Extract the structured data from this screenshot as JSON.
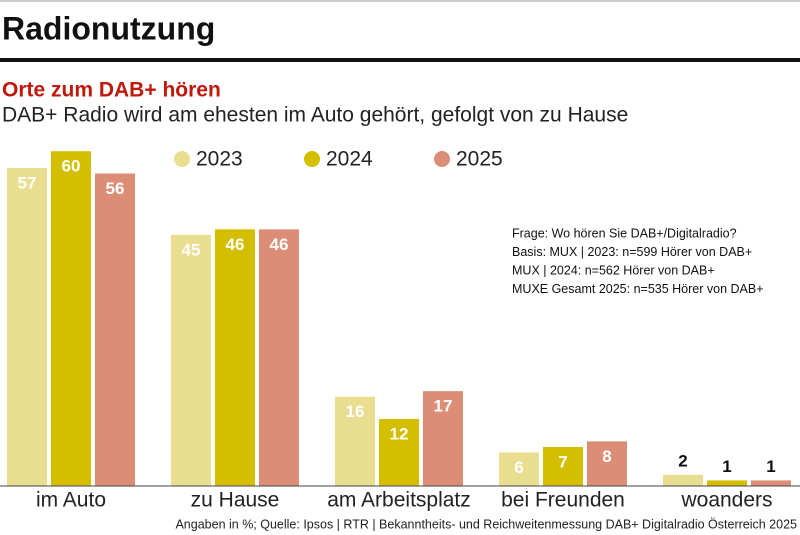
{
  "chart_data": {
    "type": "bar",
    "header": "Radionutzung",
    "title": "Orte zum DAB+ hören",
    "subtitle": "DAB+ Radio wird am ehesten im Auto gehört, gefolgt von zu Hause",
    "categories": [
      "im Auto",
      "zu Hause",
      "am Arbeitsplatz",
      "bei Freunden",
      "woanders"
    ],
    "series": [
      {
        "name": "2023",
        "color": "#e9dd8f",
        "values": [
          57,
          45,
          16,
          6,
          2
        ]
      },
      {
        "name": "2024",
        "color": "#d3be00",
        "values": [
          60,
          46,
          12,
          7,
          1
        ]
      },
      {
        "name": "2025",
        "color": "#dc8d76",
        "values": [
          56,
          46,
          17,
          8,
          1
        ]
      }
    ],
    "annotations": [
      "Frage: Wo hören Sie DAB+/Digitalradio?",
      "Basis: MUX | 2023: n=599 Hörer von DAB+",
      "MUX | 2024: n=562 Hörer von DAB+",
      "MUXE Gesamt 2025: n=535 Hörer von DAB+"
    ],
    "source": "Angaben in %; Quelle: Ipsos | RTR | Bekanntheits- und Reichweitenmessung DAB+ Digitalradio Österreich 2025"
  }
}
